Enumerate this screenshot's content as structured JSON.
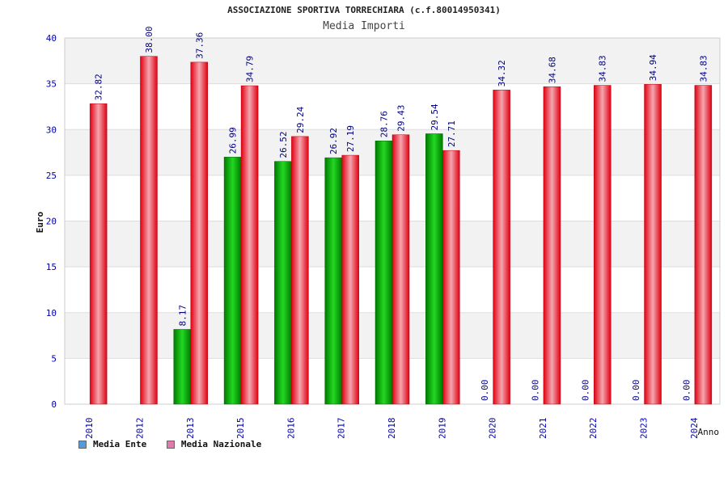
{
  "chart_data": {
    "type": "bar",
    "title": "ASSOCIAZIONE SPORTIVA TORRECHIARA (c.f.80014950341)",
    "subtitle": "Media Importi",
    "xlabel": "Anno",
    "ylabel": "Euro",
    "ylim": [
      0,
      40
    ],
    "yticks": [
      0,
      5,
      10,
      15,
      20,
      25,
      30,
      35,
      40
    ],
    "categories": [
      "2010",
      "2012",
      "2013",
      "2015",
      "2016",
      "2017",
      "2018",
      "2019",
      "2020",
      "2021",
      "2022",
      "2023",
      "2024"
    ],
    "series": [
      {
        "name": "Media Ente",
        "values": [
          null,
          null,
          8.17,
          26.99,
          26.52,
          26.92,
          28.76,
          29.54,
          0.0,
          0.0,
          0.0,
          0.0,
          0.0
        ],
        "labels": [
          "",
          "",
          "8.17",
          "26.99",
          "26.52",
          "26.92",
          "28.76",
          "29.54",
          "0.00",
          "0.00",
          "0.00",
          "0.00",
          "0.00"
        ],
        "color": "#00b000",
        "legend_color": "#5b9bd5"
      },
      {
        "name": "Media Nazionale",
        "values": [
          32.82,
          38.0,
          37.36,
          34.79,
          29.24,
          27.19,
          29.43,
          27.71,
          34.32,
          34.68,
          34.83,
          34.94,
          34.83
        ],
        "labels": [
          "32.82",
          "38.00",
          "37.36",
          "34.79",
          "29.24",
          "27.19",
          "29.43",
          "27.71",
          "34.32",
          "34.68",
          "34.83",
          "34.94",
          "34.83"
        ],
        "color": "#ee1122",
        "legend_color": "#e07aa8"
      }
    ],
    "grid": true,
    "legend_position": "bottom-left",
    "colors": {
      "label": "#000080",
      "axis_tick_label": "#0000aa",
      "band": "#f2f2f2"
    }
  }
}
